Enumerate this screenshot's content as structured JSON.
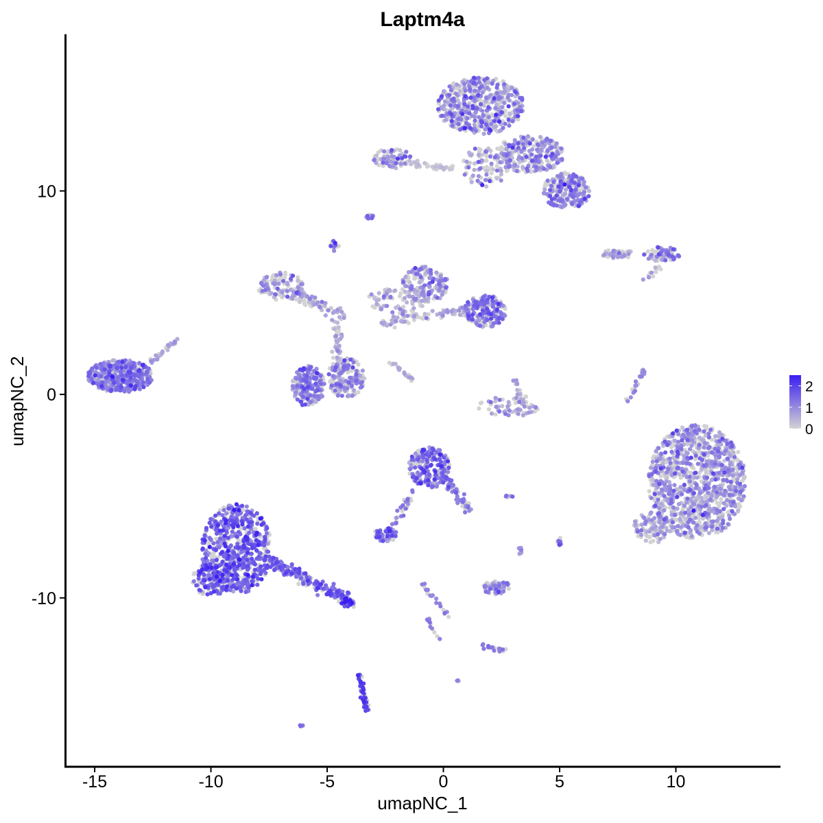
{
  "chart_data": {
    "type": "scatter",
    "title": "Laptm4a",
    "xlabel": "umapNC_1",
    "ylabel": "umapNC_2",
    "xlim": [
      -16.3,
      14.5
    ],
    "ylim": [
      -18.3,
      17.7
    ],
    "x_ticks": [
      -15,
      -10,
      -5,
      0,
      5,
      10
    ],
    "x_tick_labels": [
      "-15",
      "-10",
      "-5",
      "0",
      "5",
      "10"
    ],
    "y_ticks": [
      10,
      0,
      -10
    ],
    "y_tick_labels": [
      "10",
      "0",
      "-10"
    ],
    "grid": false,
    "legend": {
      "position": "right",
      "type": "color-gradient",
      "values": [
        0,
        1,
        2
      ],
      "labels": [
        "0",
        "1",
        "2"
      ],
      "low_color": "#d3d3d3",
      "high_color": "#3a1ef2"
    },
    "point_color_scale": {
      "low": "#d3d3d3",
      "high": "#3a1ef2"
    },
    "clusters": [
      {
        "shape": "ellipse",
        "cx": 1.6,
        "cy": 14.2,
        "rx": 1.9,
        "ry": 1.4,
        "n": 520,
        "expr": 0.75,
        "jitter": 0.55
      },
      {
        "shape": "ellipse",
        "cx": 3.7,
        "cy": 11.8,
        "rx": 1.5,
        "ry": 0.9,
        "n": 260,
        "expr": 0.8,
        "jitter": 0.5
      },
      {
        "shape": "ellipse",
        "cx": 5.3,
        "cy": 10.0,
        "rx": 1.0,
        "ry": 0.9,
        "n": 220,
        "expr": 1.0,
        "jitter": 0.45
      },
      {
        "shape": "ellipse",
        "cx": 1.8,
        "cy": 11.2,
        "rx": 1.0,
        "ry": 1.0,
        "n": 90,
        "expr": 0.45,
        "jitter": 0.7
      },
      {
        "shape": "ellipse",
        "cx": -2.2,
        "cy": 11.6,
        "rx": 0.8,
        "ry": 0.5,
        "n": 70,
        "expr": 0.9,
        "jitter": 0.5
      },
      {
        "shape": "line",
        "x1": -1.4,
        "y1": 11.3,
        "x2": 0.5,
        "y2": 11.1,
        "n": 45,
        "expr": 0.2,
        "jitter": 0.12
      },
      {
        "shape": "ellipse",
        "cx": -3.2,
        "cy": 8.7,
        "rx": 0.2,
        "ry": 0.15,
        "n": 10,
        "expr": 1.1,
        "jitter": 0.5
      },
      {
        "shape": "ellipse",
        "cx": -4.7,
        "cy": 7.3,
        "rx": 0.2,
        "ry": 0.25,
        "n": 14,
        "expr": 1.0,
        "jitter": 0.5
      },
      {
        "shape": "ellipse",
        "cx": 7.5,
        "cy": 6.9,
        "rx": 0.7,
        "ry": 0.22,
        "n": 45,
        "expr": 0.55,
        "jitter": 0.4
      },
      {
        "shape": "ellipse",
        "cx": 9.4,
        "cy": 6.9,
        "rx": 0.8,
        "ry": 0.35,
        "n": 70,
        "expr": 1.1,
        "jitter": 0.45
      },
      {
        "shape": "line",
        "x1": 8.6,
        "y1": 5.6,
        "x2": 9.3,
        "y2": 6.3,
        "n": 12,
        "expr": 0.8,
        "jitter": 0.12
      },
      {
        "shape": "ellipse",
        "cx": -7.0,
        "cy": 5.3,
        "rx": 1.0,
        "ry": 0.7,
        "n": 110,
        "expr": 0.65,
        "jitter": 0.5
      },
      {
        "shape": "line",
        "x1": -6.4,
        "y1": 5.0,
        "x2": -4.2,
        "y2": 3.8,
        "n": 70,
        "expr": 0.5,
        "jitter": 0.3
      },
      {
        "shape": "ellipse",
        "cx": -2.0,
        "cy": 4.5,
        "rx": 1.4,
        "ry": 0.7,
        "n": 80,
        "expr": 0.5,
        "jitter": 0.5
      },
      {
        "shape": "ellipse",
        "cx": -0.8,
        "cy": 5.4,
        "rx": 1.0,
        "ry": 0.9,
        "n": 150,
        "expr": 0.85,
        "jitter": 0.45
      },
      {
        "shape": "line",
        "x1": -2.6,
        "y1": 3.5,
        "x2": 1.2,
        "y2": 4.2,
        "n": 70,
        "expr": 0.65,
        "jitter": 0.25
      },
      {
        "shape": "ellipse",
        "cx": 1.8,
        "cy": 4.1,
        "rx": 0.9,
        "ry": 0.8,
        "n": 190,
        "expr": 1.15,
        "jitter": 0.4
      },
      {
        "shape": "line",
        "x1": -4.6,
        "y1": 3.5,
        "x2": -4.5,
        "y2": 1.5,
        "n": 40,
        "expr": 0.5,
        "jitter": 0.25
      },
      {
        "shape": "ellipse",
        "cx": -5.8,
        "cy": 0.4,
        "rx": 0.7,
        "ry": 1.0,
        "n": 200,
        "expr": 1.1,
        "jitter": 0.45
      },
      {
        "shape": "ellipse",
        "cx": -4.2,
        "cy": 0.8,
        "rx": 0.8,
        "ry": 1.0,
        "n": 170,
        "expr": 0.85,
        "jitter": 0.45
      },
      {
        "shape": "line",
        "x1": -2.3,
        "y1": 1.6,
        "x2": -1.3,
        "y2": 0.7,
        "n": 22,
        "expr": 0.5,
        "jitter": 0.1
      },
      {
        "shape": "ellipse",
        "cx": -13.9,
        "cy": 0.9,
        "rx": 1.4,
        "ry": 0.8,
        "n": 480,
        "expr": 1.05,
        "jitter": 0.45
      },
      {
        "shape": "line",
        "x1": -12.7,
        "y1": 1.5,
        "x2": -11.4,
        "y2": 2.7,
        "n": 25,
        "expr": 0.7,
        "jitter": 0.12
      },
      {
        "shape": "ellipse",
        "cx": 2.8,
        "cy": -0.6,
        "rx": 1.3,
        "ry": 0.5,
        "n": 60,
        "expr": 0.6,
        "jitter": 0.4
      },
      {
        "shape": "line",
        "x1": 3.0,
        "y1": 0.8,
        "x2": 3.5,
        "y2": -0.5,
        "n": 20,
        "expr": 0.7,
        "jitter": 0.15
      },
      {
        "shape": "line",
        "x1": 8.6,
        "y1": 1.2,
        "x2": 7.9,
        "y2": -0.4,
        "n": 25,
        "expr": 1.0,
        "jitter": 0.1
      },
      {
        "shape": "ellipse",
        "cx": 10.9,
        "cy": -4.3,
        "rx": 2.1,
        "ry": 2.8,
        "n": 1100,
        "expr": 0.7,
        "jitter": 0.5
      },
      {
        "shape": "ellipse",
        "cx": 9.0,
        "cy": -6.5,
        "rx": 0.8,
        "ry": 0.8,
        "n": 100,
        "expr": 0.55,
        "jitter": 0.45
      },
      {
        "shape": "ellipse",
        "cx": -0.6,
        "cy": -3.6,
        "rx": 0.9,
        "ry": 1.0,
        "n": 220,
        "expr": 1.25,
        "jitter": 0.45
      },
      {
        "shape": "line",
        "x1": 0.2,
        "y1": -4.3,
        "x2": 1.1,
        "y2": -5.7,
        "n": 50,
        "expr": 1.15,
        "jitter": 0.2
      },
      {
        "shape": "line",
        "x1": -1.3,
        "y1": -4.8,
        "x2": -2.3,
        "y2": -6.8,
        "n": 35,
        "expr": 1.2,
        "jitter": 0.15
      },
      {
        "shape": "ellipse",
        "cx": -2.5,
        "cy": -6.9,
        "rx": 0.5,
        "ry": 0.35,
        "n": 55,
        "expr": 1.35,
        "jitter": 0.4
      },
      {
        "shape": "ellipse",
        "cx": -8.9,
        "cy": -7.6,
        "rx": 1.5,
        "ry": 2.2,
        "n": 650,
        "expr": 1.45,
        "jitter": 0.45
      },
      {
        "shape": "ellipse",
        "cx": -10.0,
        "cy": -9.1,
        "rx": 0.8,
        "ry": 0.8,
        "n": 120,
        "expr": 1.4,
        "jitter": 0.45
      },
      {
        "shape": "line",
        "x1": -7.6,
        "y1": -8.1,
        "x2": -4.0,
        "y2": -10.2,
        "n": 200,
        "expr": 1.55,
        "jitter": 0.3
      },
      {
        "shape": "ellipse",
        "cx": -4.2,
        "cy": -10.2,
        "rx": 0.3,
        "ry": 0.2,
        "n": 18,
        "expr": 2.3,
        "jitter": 0.4
      },
      {
        "shape": "ellipse",
        "cx": 2.3,
        "cy": -9.5,
        "rx": 0.6,
        "ry": 0.35,
        "n": 60,
        "expr": 0.75,
        "jitter": 0.4
      },
      {
        "shape": "line",
        "x1": -0.9,
        "y1": -9.3,
        "x2": 0.3,
        "y2": -11.0,
        "n": 20,
        "expr": 1.1,
        "jitter": 0.12
      },
      {
        "shape": "line",
        "x1": -0.7,
        "y1": -11.0,
        "x2": -0.2,
        "y2": -12.1,
        "n": 14,
        "expr": 1.0,
        "jitter": 0.12
      },
      {
        "shape": "line",
        "x1": 1.7,
        "y1": -12.3,
        "x2": 2.6,
        "y2": -12.6,
        "n": 22,
        "expr": 1.2,
        "jitter": 0.12
      },
      {
        "shape": "line",
        "x1": -3.6,
        "y1": -13.8,
        "x2": -3.3,
        "y2": -15.6,
        "n": 45,
        "expr": 2.0,
        "jitter": 0.15
      },
      {
        "shape": "ellipse",
        "cx": -6.1,
        "cy": -16.3,
        "rx": 0.1,
        "ry": 0.05,
        "n": 5,
        "expr": 1.6,
        "jitter": 0.4
      },
      {
        "shape": "ellipse",
        "cx": 0.6,
        "cy": -14.1,
        "rx": 0.08,
        "ry": 0.05,
        "n": 4,
        "expr": 1.2,
        "jitter": 0.4
      },
      {
        "shape": "ellipse",
        "cx": 5.0,
        "cy": -7.3,
        "rx": 0.12,
        "ry": 0.25,
        "n": 12,
        "expr": 1.4,
        "jitter": 0.4
      },
      {
        "shape": "ellipse",
        "cx": 2.8,
        "cy": -5.0,
        "rx": 0.2,
        "ry": 0.08,
        "n": 8,
        "expr": 1.5,
        "jitter": 0.4
      },
      {
        "shape": "ellipse",
        "cx": 3.3,
        "cy": -7.7,
        "rx": 0.08,
        "ry": 0.2,
        "n": 6,
        "expr": 0.9,
        "jitter": 0.4
      }
    ]
  }
}
